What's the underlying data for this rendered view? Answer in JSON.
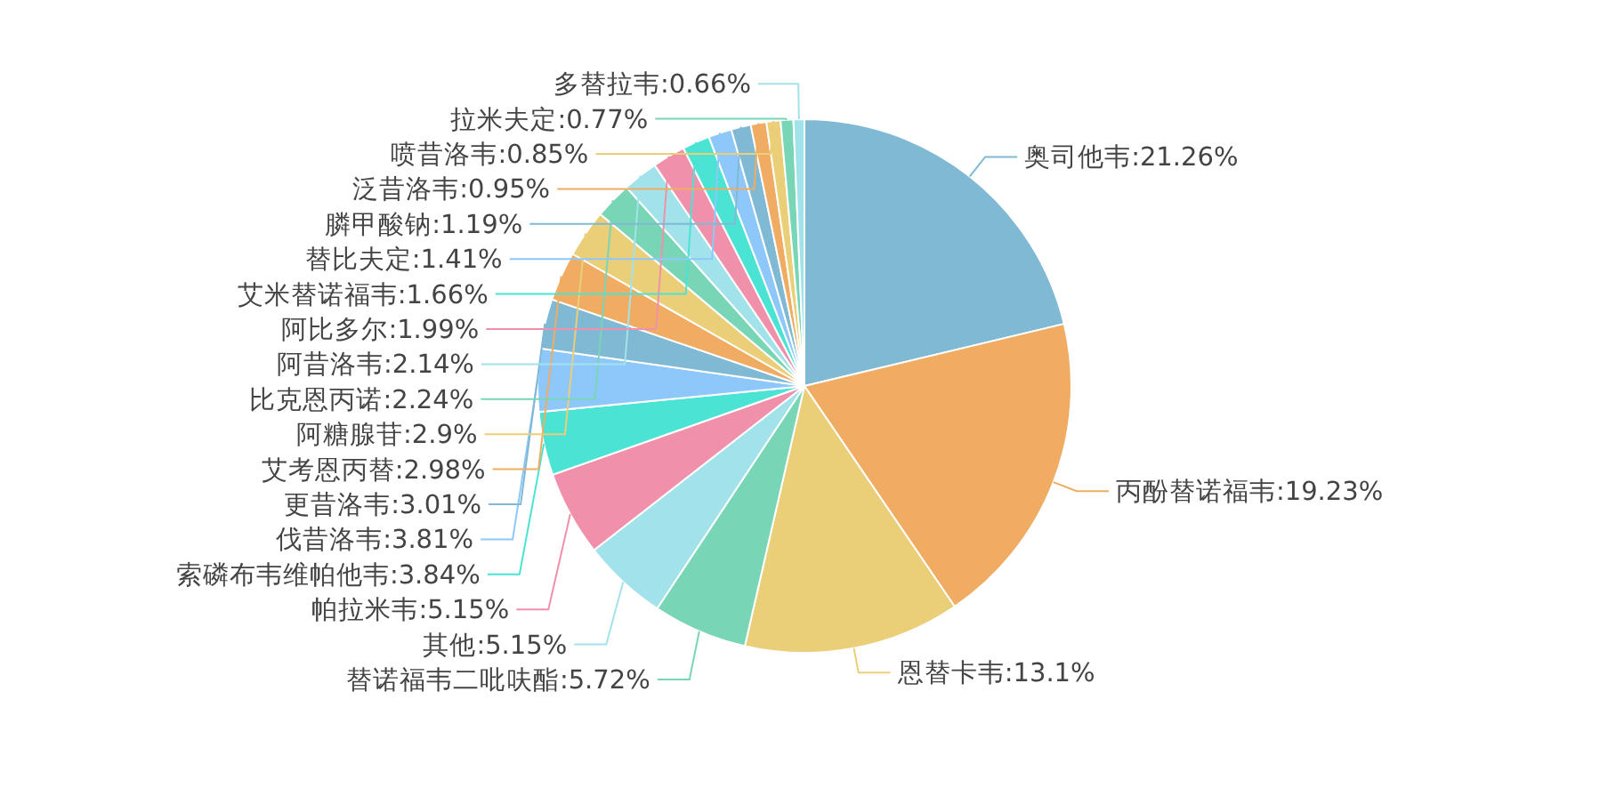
{
  "chart_data": {
    "type": "pie",
    "categories": [
      "奥司他韦",
      "丙酚替诺福韦",
      "恩替卡韦",
      "替诺福韦二吡呋酯",
      "其他",
      "帕拉米韦",
      "索磷布韦维帕他韦",
      "伐昔洛韦",
      "更昔洛韦",
      "艾考恩丙替",
      "阿糖腺苷",
      "比克恩丙诺",
      "阿昔洛韦",
      "阿比多尔",
      "艾米替诺福韦",
      "替比夫定",
      "膦甲酸钠",
      "泛昔洛韦",
      "喷昔洛韦",
      "拉米夫定",
      "多替拉韦"
    ],
    "values": [
      21.26,
      19.23,
      13.1,
      5.72,
      5.15,
      5.15,
      3.84,
      3.81,
      3.01,
      2.98,
      2.9,
      2.24,
      2.14,
      1.99,
      1.66,
      1.41,
      1.19,
      0.95,
      0.85,
      0.77,
      0.66
    ],
    "value_labels": [
      ":21.26%",
      ":19.23%",
      ":13.1%",
      ":5.72%",
      ":5.15%",
      ":5.15%",
      ":3.84%",
      ":3.81%",
      ":3.01%",
      ":2.98%",
      ":2.9%",
      ":2.24%",
      ":2.14%",
      ":1.99%",
      ":1.66%",
      ":1.41%",
      ":1.19%",
      ":0.95%",
      ":0.85%",
      ":0.77%",
      ":0.66%"
    ],
    "colors": [
      "#80b9d4",
      "#f0ac62",
      "#ebce78",
      "#78d6b7",
      "#a2e2ea",
      "#f190ab",
      "#4ae3d4",
      "#8ec8fa",
      "#80b9d4",
      "#f0ac62",
      "#ebce78",
      "#78d6b7",
      "#a2e2ea",
      "#f190ab",
      "#4ae3d4",
      "#8ec8fa",
      "#80b9d4",
      "#f0ac62",
      "#ebce78",
      "#78d6b7",
      "#a2e2ea"
    ]
  }
}
